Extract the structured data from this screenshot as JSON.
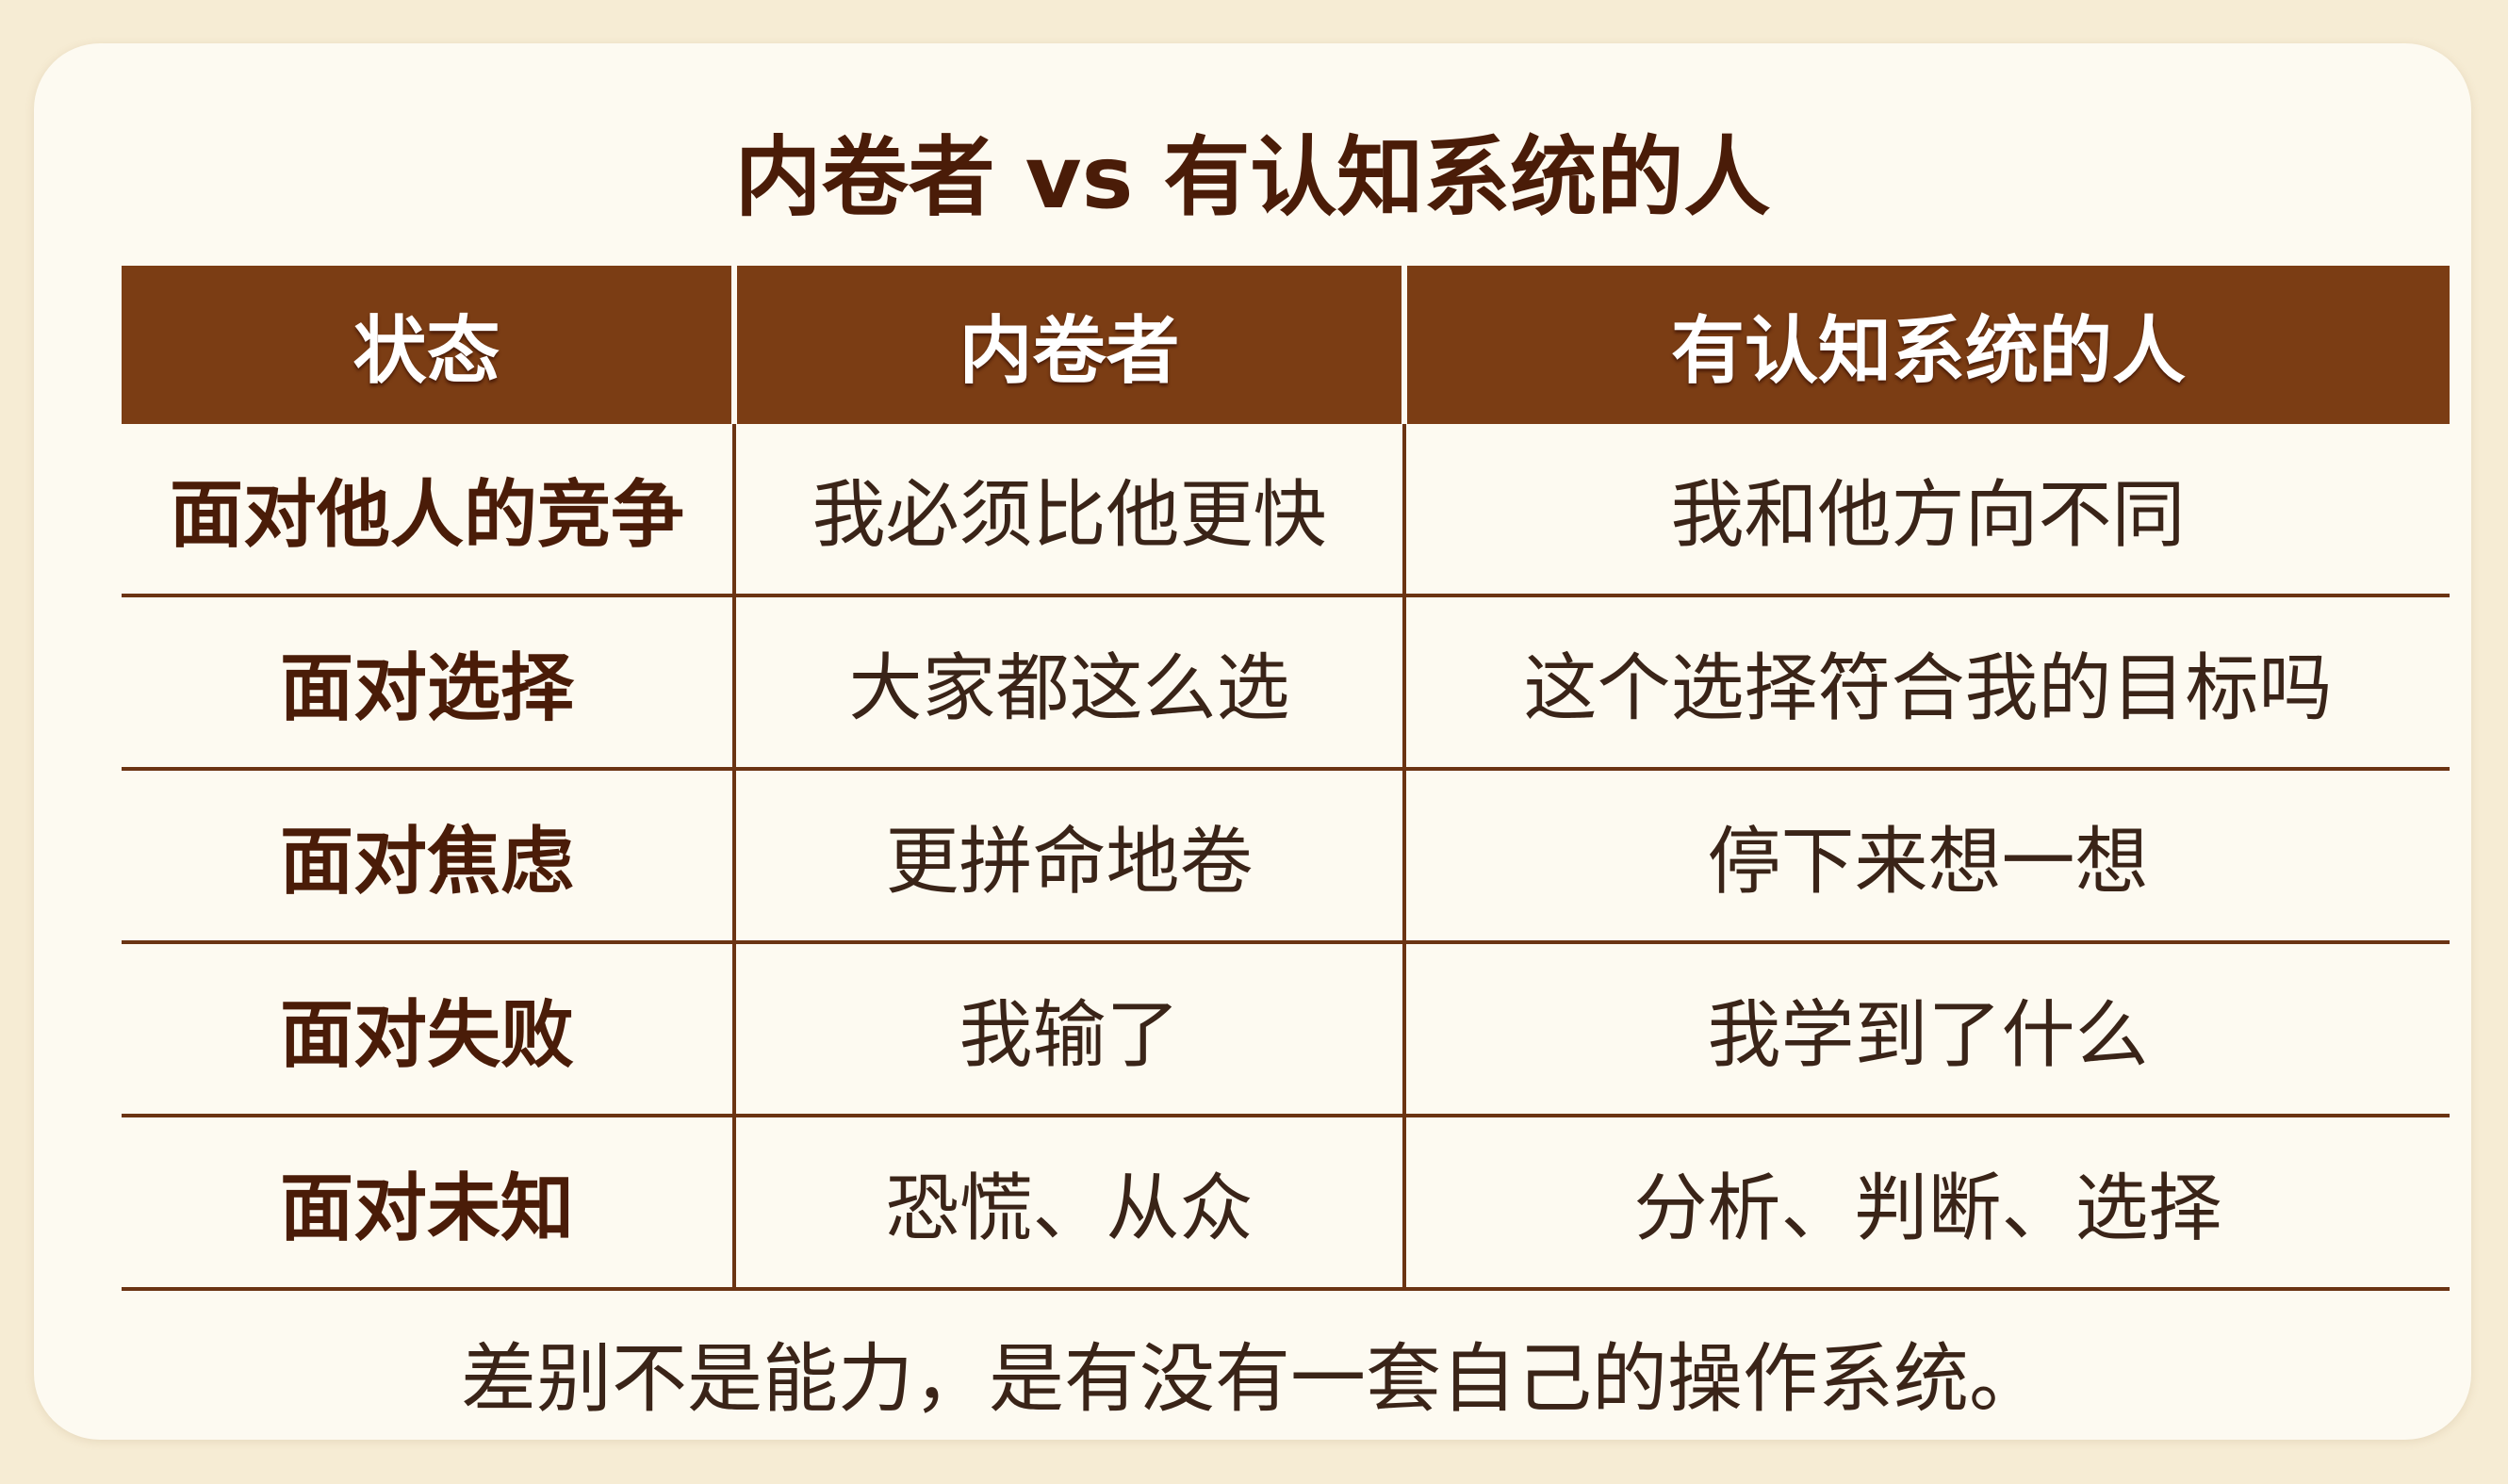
{
  "title": "内卷者 vs 有认知系统的人",
  "headers": [
    "状态",
    "内卷者",
    "有认知系统的人"
  ],
  "rows": [
    [
      "面对他人的竞争",
      "我必须比他更快",
      "我和他方向不同"
    ],
    [
      "面对选择",
      "大家都这么选",
      "这个选择符合我的目标吗"
    ],
    [
      "面对焦虑",
      "更拼命地卷",
      "停下来想一想"
    ],
    [
      "面对失败",
      "我输了",
      "我学到了什么"
    ],
    [
      "面对未知",
      "恐慌、从众",
      "分析、判断、选择"
    ]
  ],
  "footer": "差别不是能力，是有没有一套自己的操作系统。",
  "colors": {
    "header_bg": "#7b3d14",
    "background": "#f6ecd4",
    "card": "#fdfaf1"
  }
}
